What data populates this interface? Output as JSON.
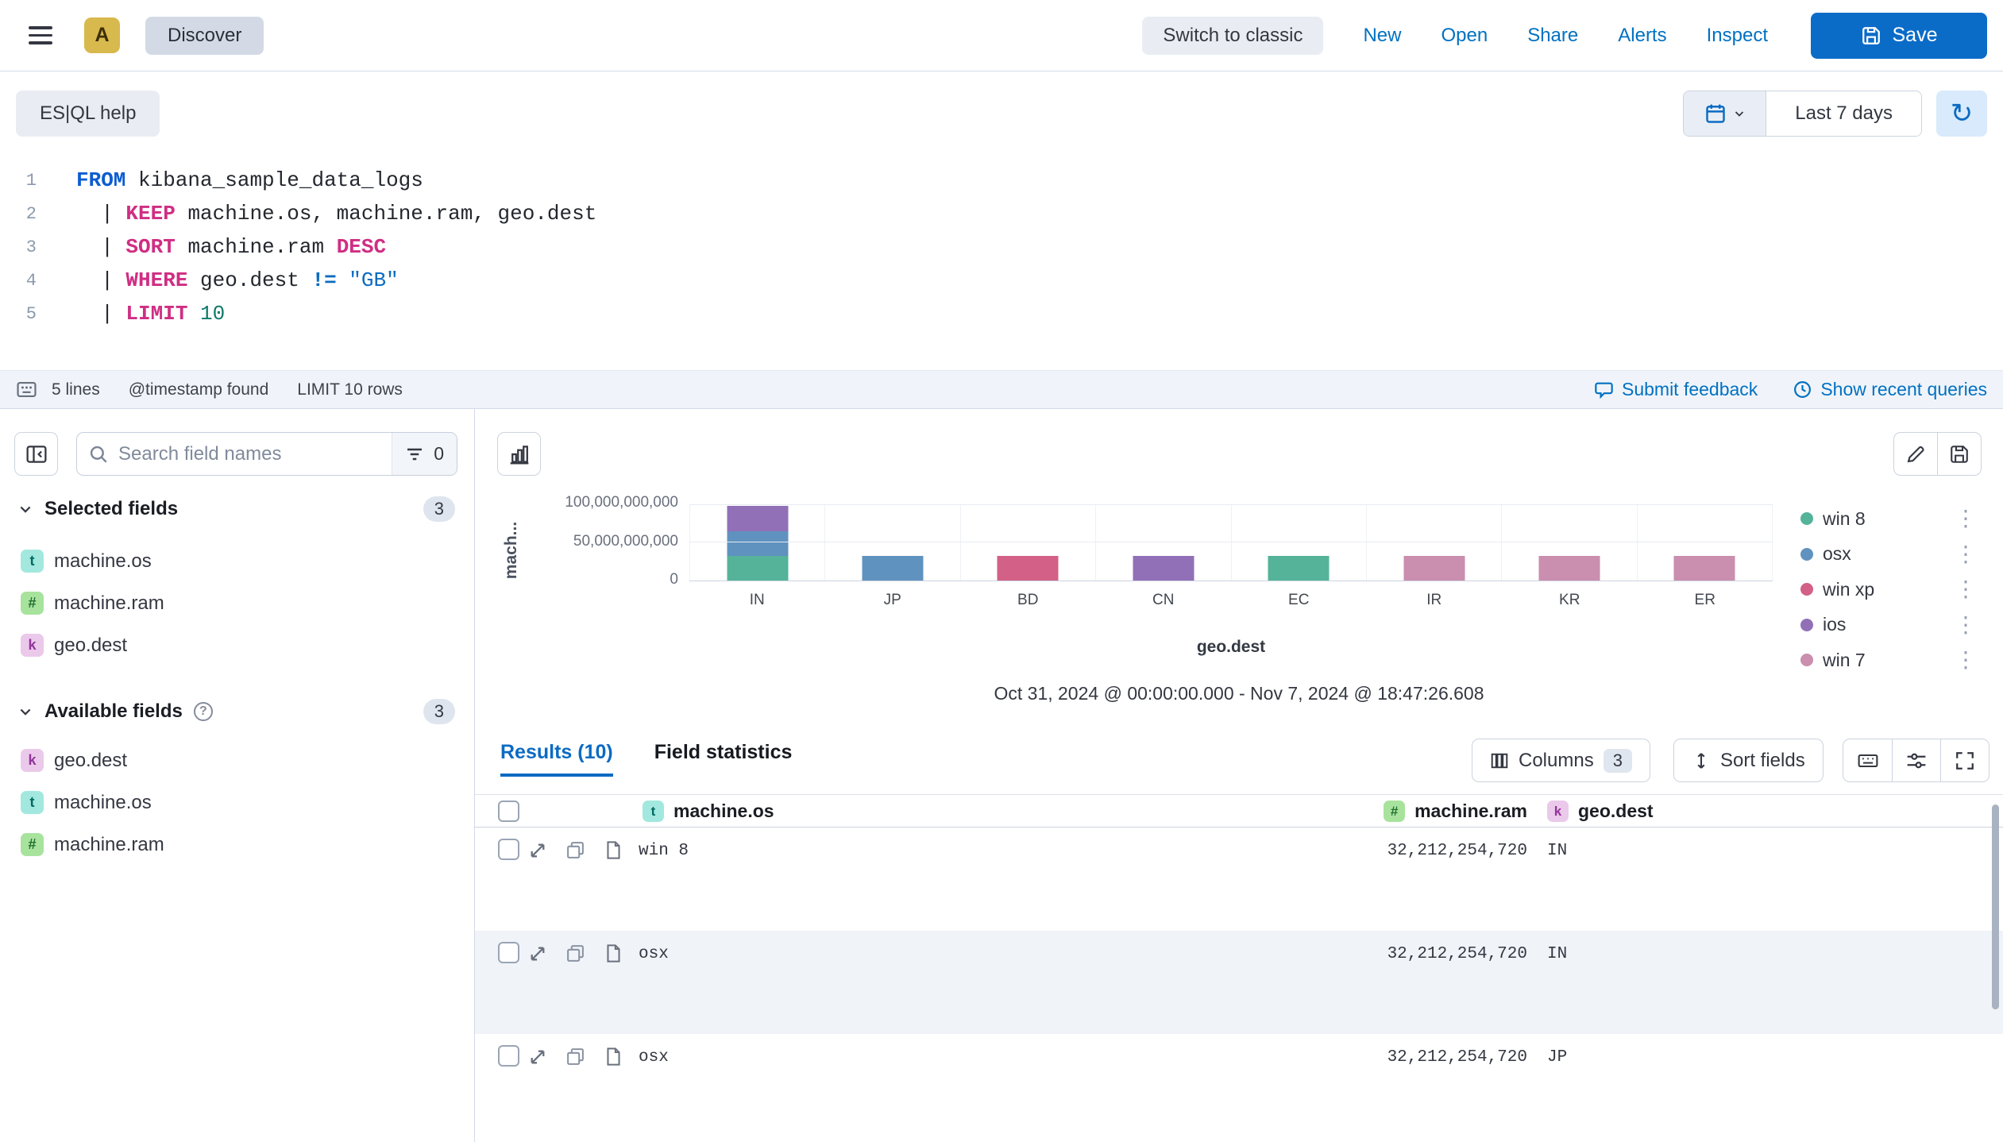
{
  "colors": {
    "primary": "#0071c2",
    "save_button": "#0b6cc8",
    "breadcrumb_bg": "#d3dae6",
    "avatar_bg": "#d8b94e",
    "chart_palette": [
      "#54B399",
      "#6092C0",
      "#D36086",
      "#9170B8",
      "#CA8EAE"
    ]
  },
  "topnav": {
    "avatar": "A",
    "breadcrumb": "Discover",
    "switch_to_classic": "Switch to classic",
    "menu_items": [
      "New",
      "Open",
      "Share",
      "Alerts",
      "Inspect"
    ],
    "save_label": "Save"
  },
  "querybar": {
    "esql_help_label": "ES|QL help",
    "time_range_label": "Last 7 days"
  },
  "editor": {
    "lines": [
      {
        "num": "1",
        "tokens": [
          {
            "t": "FROM",
            "c": "kb"
          },
          {
            "t": " kibana_sample_data_logs",
            "c": "p"
          }
        ]
      },
      {
        "num": "2",
        "tokens": [
          {
            "t": "  | ",
            "c": "p"
          },
          {
            "t": "KEEP",
            "c": "kp"
          },
          {
            "t": " machine.os, machine.ram, geo.dest",
            "c": "p"
          }
        ]
      },
      {
        "num": "3",
        "tokens": [
          {
            "t": "  | ",
            "c": "p"
          },
          {
            "t": "SORT",
            "c": "kp"
          },
          {
            "t": " machine.ram ",
            "c": "p"
          },
          {
            "t": "DESC",
            "c": "kp"
          }
        ]
      },
      {
        "num": "4",
        "tokens": [
          {
            "t": "  | ",
            "c": "p"
          },
          {
            "t": "WHERE",
            "c": "kp"
          },
          {
            "t": " geo.dest ",
            "c": "p"
          },
          {
            "t": "!=",
            "c": "op"
          },
          {
            "t": " ",
            "c": "p"
          },
          {
            "t": "\"GB\"",
            "c": "str"
          }
        ]
      },
      {
        "num": "5",
        "tokens": [
          {
            "t": "  | ",
            "c": "p"
          },
          {
            "t": "LIMIT",
            "c": "kp"
          },
          {
            "t": " ",
            "c": "p"
          },
          {
            "t": "10",
            "c": "num"
          }
        ]
      }
    ],
    "footer": {
      "lines_count": "5 lines",
      "timestamp_status": "@timestamp found",
      "limit_status": "LIMIT 10 rows",
      "submit_feedback": "Submit feedback",
      "show_recent_queries": "Show recent queries"
    }
  },
  "sidebar": {
    "search_placeholder": "Search field names",
    "filter_count": "0",
    "selected": {
      "label": "Selected fields",
      "count": "3",
      "fields": [
        {
          "type": "t",
          "name": "machine.os"
        },
        {
          "type": "#",
          "name": "machine.ram"
        },
        {
          "type": "k",
          "name": "geo.dest"
        }
      ]
    },
    "available": {
      "label": "Available fields",
      "count": "3",
      "fields": [
        {
          "type": "k",
          "name": "geo.dest"
        },
        {
          "type": "t",
          "name": "machine.os"
        },
        {
          "type": "#",
          "name": "machine.ram"
        }
      ]
    }
  },
  "chart_data": {
    "type": "bar",
    "stacked": true,
    "categories": [
      "IN",
      "JP",
      "BD",
      "CN",
      "EC",
      "IR",
      "KR",
      "ER"
    ],
    "series": [
      {
        "name": "win 8",
        "color": "#54B399",
        "values": [
          32212254720,
          0,
          0,
          0,
          32212254720,
          0,
          0,
          0
        ]
      },
      {
        "name": "osx",
        "color": "#6092C0",
        "values": [
          32212254720,
          32212254720,
          0,
          0,
          0,
          0,
          0,
          0
        ]
      },
      {
        "name": "win xp",
        "color": "#D36086",
        "values": [
          0,
          0,
          32212254720,
          0,
          0,
          0,
          0,
          0
        ]
      },
      {
        "name": "ios",
        "color": "#9170B8",
        "values": [
          32212254720,
          0,
          0,
          32212254720,
          0,
          0,
          0,
          0
        ]
      },
      {
        "name": "win 7",
        "color": "#CA8EAE",
        "values": [
          0,
          0,
          0,
          0,
          0,
          32212254720,
          32212254720,
          32212254720
        ]
      }
    ],
    "title": "",
    "xlabel": "geo.dest",
    "ylabel": "mach...",
    "yticks": [
      "100,000,000,000",
      "50,000,000,000",
      "0"
    ],
    "ytick_values": [
      100000000000,
      50000000000,
      0
    ],
    "ylim": [
      0,
      105000000000
    ],
    "grid": true,
    "legend_position": "right"
  },
  "histogram": {
    "time_range_footer": "Oct 31, 2024 @ 00:00:00.000 - Nov 7, 2024 @ 18:47:26.608"
  },
  "results": {
    "tabs": [
      {
        "label": "Results (10)",
        "active": true
      },
      {
        "label": "Field statistics",
        "active": false
      }
    ],
    "columns_label": "Columns",
    "columns_count": "3",
    "sort_label": "Sort fields",
    "table": {
      "headers": [
        {
          "type": "t",
          "name": "machine.os"
        },
        {
          "type": "#",
          "name": "machine.ram"
        },
        {
          "type": "k",
          "name": "geo.dest"
        }
      ],
      "rows": [
        {
          "os": "win 8",
          "ram": "32,212,254,720",
          "dest": "IN"
        },
        {
          "os": "osx",
          "ram": "32,212,254,720",
          "dest": "IN"
        },
        {
          "os": "osx",
          "ram": "32,212,254,720",
          "dest": "JP"
        }
      ]
    }
  }
}
